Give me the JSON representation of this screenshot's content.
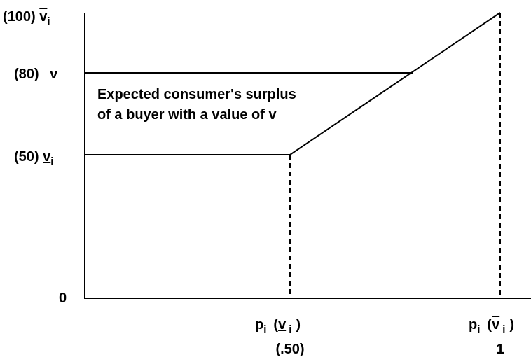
{
  "y_labels": [
    {
      "number": "(100)",
      "symbol": "v",
      "subscript": "i"
    },
    {
      "number": "(80)",
      "symbol": "v"
    },
    {
      "number": "(50)",
      "symbol": "v",
      "subscript": "i"
    },
    {
      "number": "0"
    }
  ],
  "x_labels": [
    {
      "function": "p",
      "function_subscript": "i",
      "open": "(",
      "argument": "v",
      "argument_subscript": "i",
      "close": ")",
      "value": "(.50)"
    },
    {
      "function": "p",
      "function_subscript": "i",
      "open": "(",
      "argument": "v",
      "argument_subscript": "i",
      "close": ")",
      "value": "1"
    }
  ],
  "annotation": [
    "Expected consumer's surplus",
    "of a buyer with a value of v"
  ]
}
